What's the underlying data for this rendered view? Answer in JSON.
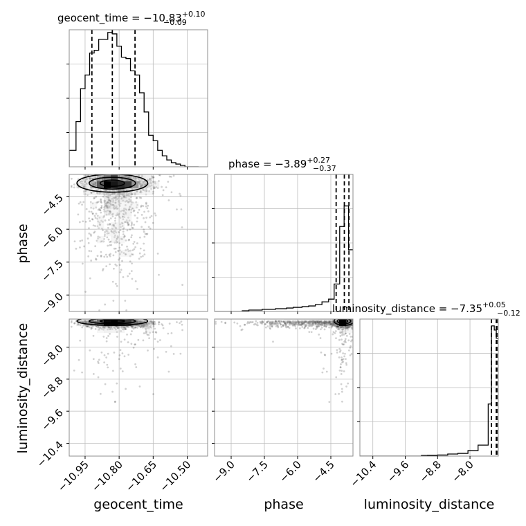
{
  "chart_data": {
    "type": "corner",
    "parameters": [
      "geocent_time",
      "phase",
      "luminosity_distance"
    ],
    "axis_labels": {
      "geocent_time": "geocent_time",
      "phase": "phase",
      "luminosity_distance": "luminosity_distance"
    },
    "titles": [
      {
        "param": "geocent_time",
        "text": "geocent_time = −10.83",
        "plus": "+0.10",
        "minus": "−0.09"
      },
      {
        "param": "phase",
        "text": "phase = −3.89",
        "plus": "+0.27",
        "minus": "−0.37"
      },
      {
        "param": "luminosity_distance",
        "text": "luminosity_distance = −7.35",
        "plus": "+0.05",
        "minus": "−0.12"
      }
    ],
    "ranges": {
      "geocent_time": [
        -11.02,
        -10.41
      ],
      "phase": [
        -9.75,
        -3.5
      ],
      "luminosity_distance": [
        -10.72,
        -7.3
      ]
    },
    "ticks": {
      "geocent_time": {
        "values": [
          -10.95,
          -10.8,
          -10.65,
          -10.5
        ],
        "labels": [
          "−10.95",
          "−10.80",
          "−10.65",
          "−10.50"
        ]
      },
      "phase": {
        "values": [
          -9.0,
          -7.5,
          -6.0,
          -4.5
        ],
        "labels": [
          "−9.0",
          "−7.5",
          "−6.0",
          "−4.5"
        ]
      },
      "luminosity_distance": {
        "values": [
          -10.4,
          -9.6,
          -8.8,
          -8.0
        ],
        "labels": [
          "−10.4",
          "−9.6",
          "−8.8",
          "−8.0"
        ]
      }
    },
    "quantiles": {
      "geocent_time": [
        -10.92,
        -10.83,
        -10.73
      ],
      "phase": [
        -4.26,
        -3.89,
        -3.62
      ],
      "luminosity_distance": [
        -7.47,
        -7.35,
        -7.3
      ]
    },
    "histograms": {
      "geocent_time": {
        "edges": [
          -11.02,
          -10.99,
          -10.97,
          -10.95,
          -10.93,
          -10.91,
          -10.89,
          -10.87,
          -10.85,
          -10.83,
          -10.81,
          -10.79,
          -10.77,
          -10.75,
          -10.73,
          -10.71,
          -10.69,
          -10.67,
          -10.65,
          -10.63,
          -10.61,
          -10.59,
          -10.57,
          -10.55,
          -10.53,
          -10.51,
          -10.49,
          -10.47,
          -10.45
        ],
        "counts": [
          0.12,
          0.33,
          0.57,
          0.67,
          0.83,
          0.85,
          0.93,
          0.93,
          0.98,
          0.97,
          0.88,
          0.8,
          0.79,
          0.7,
          0.67,
          0.54,
          0.4,
          0.23,
          0.19,
          0.12,
          0.08,
          0.05,
          0.03,
          0.02,
          0.01,
          0.0,
          0.0,
          0.0
        ]
      },
      "phase": {
        "edges": [
          -9.75,
          -9.0,
          -8.5,
          -8.2,
          -7.6,
          -7.0,
          -6.5,
          -6.2,
          -5.8,
          -5.5,
          -5.2,
          -4.9,
          -4.6,
          -4.35,
          -4.1,
          -3.9,
          -3.7,
          -3.5
        ],
        "counts": [
          0.0,
          0.0,
          0.005,
          0.01,
          0.015,
          0.02,
          0.025,
          0.03,
          0.035,
          0.04,
          0.05,
          0.07,
          0.09,
          0.2,
          0.62,
          0.77,
          0.45
        ]
      },
      "luminosity_distance": {
        "edges": [
          -10.72,
          -9.2,
          -9.05,
          -8.8,
          -8.55,
          -8.3,
          -8.05,
          -7.8,
          -7.55,
          -7.47,
          -7.4,
          -7.35,
          -7.3
        ],
        "counts": [
          0.0,
          0.005,
          0.006,
          0.008,
          0.015,
          0.02,
          0.04,
          0.08,
          0.38,
          0.95,
          0.92,
          0.86
        ]
      }
    }
  }
}
